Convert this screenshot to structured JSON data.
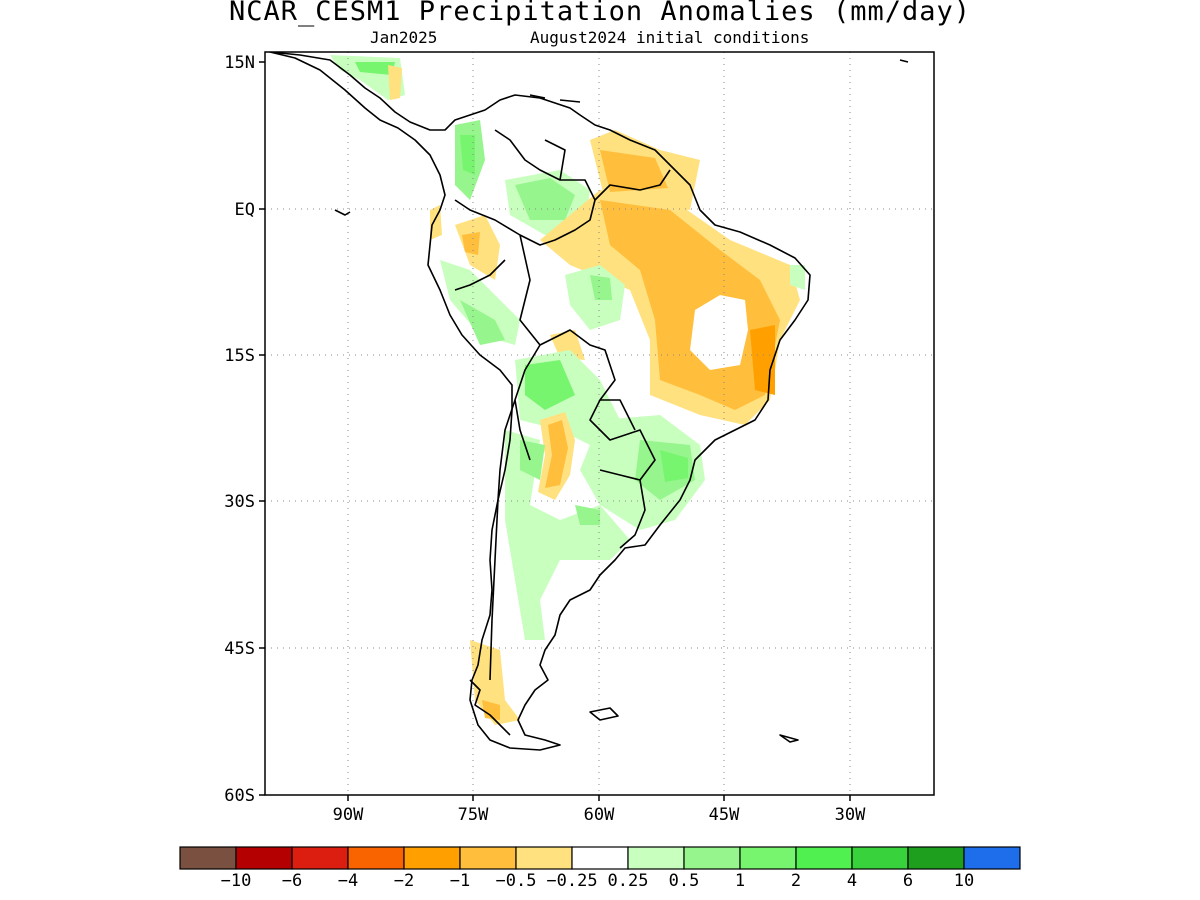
{
  "title": "NCAR_CESM1 Precipitation Anomalies (mm/day)",
  "subtitle_left": "Jan2025",
  "subtitle_right": "August2024 initial conditions",
  "lat_labels": [
    "15N",
    "EQ",
    "15S",
    "30S",
    "45S",
    "60S"
  ],
  "lon_labels": [
    "90W",
    "75W",
    "60W",
    "45W",
    "30W"
  ],
  "colorbar": {
    "colors": [
      "#7a5040",
      "#b40000",
      "#dc1e10",
      "#fa6400",
      "#ffa000",
      "#ffbe3c",
      "#ffe17f",
      "#ffffff",
      "#c8ffbe",
      "#96f58c",
      "#78f56e",
      "#50f050",
      "#37d23c",
      "#1ea01e",
      "#1e6eeb"
    ],
    "labels": [
      "-10",
      "-6",
      "-4",
      "-2",
      "-1",
      "-0.5",
      "-0.25",
      "0.25",
      "0.5",
      "1",
      "2",
      "4",
      "6",
      "10"
    ]
  }
}
